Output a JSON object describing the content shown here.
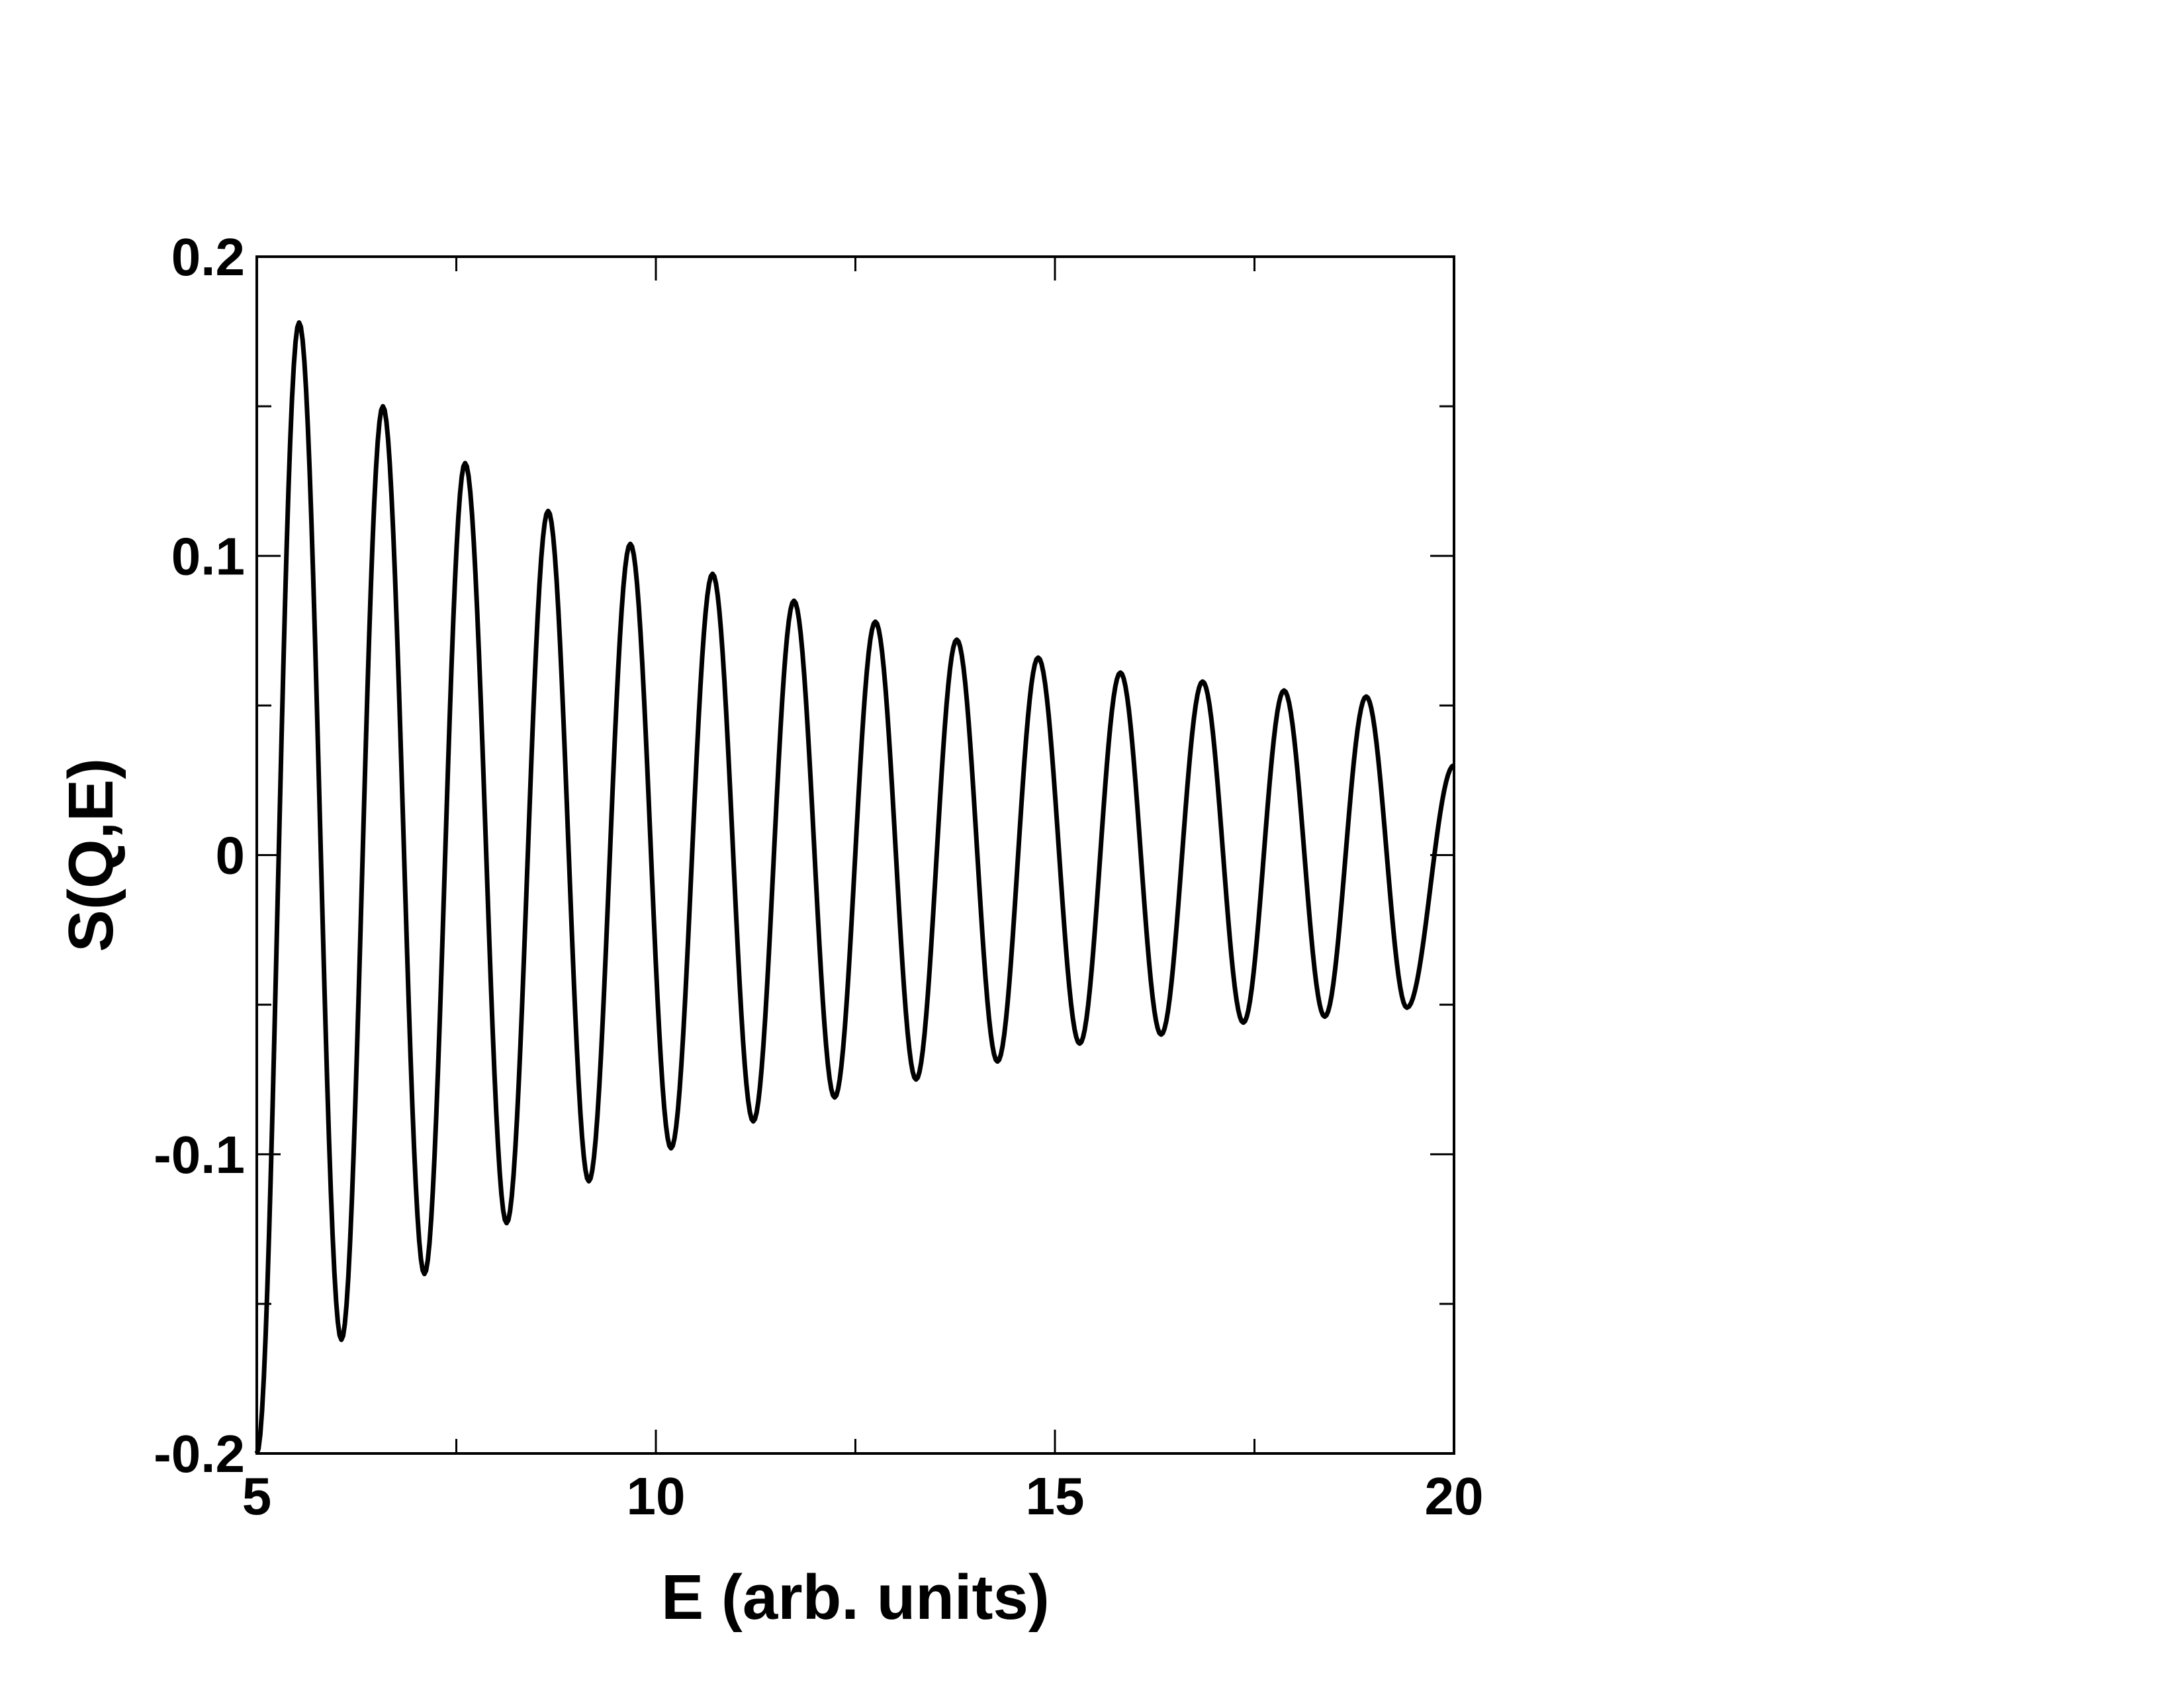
{
  "chart_data": {
    "type": "line",
    "title": "",
    "xlabel": "E (arb. units)",
    "ylabel": "S(Q,E)",
    "xlim": [
      5,
      20
    ],
    "ylim": [
      -0.2,
      0.2
    ],
    "grid": false,
    "x_ticks": {
      "major": [
        5,
        10,
        15,
        20
      ],
      "major_labels": [
        "5",
        "10",
        "15",
        "20"
      ],
      "minor": [
        7.5,
        12.5,
        17.5
      ]
    },
    "y_ticks": {
      "major": [
        -0.2,
        -0.1,
        0,
        0.1,
        0.2
      ],
      "major_labels": [
        "-0.2",
        "-0.1",
        "0",
        "0.1",
        "0.2"
      ],
      "minor": [
        -0.15,
        -0.05,
        0.05,
        0.15
      ]
    },
    "line_color": "#000000",
    "series": [
      {
        "points": [
          [
            5.0,
            -0.2
          ],
          [
            5.53,
            0.178
          ],
          [
            6.06,
            -0.162
          ],
          [
            6.58,
            0.15
          ],
          [
            7.1,
            -0.14
          ],
          [
            7.61,
            0.131
          ],
          [
            8.13,
            -0.123
          ],
          [
            8.65,
            0.115
          ],
          [
            9.16,
            -0.109
          ],
          [
            9.68,
            0.104
          ],
          [
            10.19,
            -0.098
          ],
          [
            10.71,
            0.094
          ],
          [
            11.22,
            -0.089
          ],
          [
            11.73,
            0.085
          ],
          [
            12.24,
            -0.081
          ],
          [
            12.75,
            0.078
          ],
          [
            13.26,
            -0.075
          ],
          [
            13.77,
            0.072
          ],
          [
            14.28,
            -0.069
          ],
          [
            14.79,
            0.066
          ],
          [
            15.31,
            -0.063
          ],
          [
            15.82,
            0.061
          ],
          [
            16.33,
            -0.06
          ],
          [
            16.85,
            0.058
          ],
          [
            17.36,
            -0.056
          ],
          [
            17.87,
            0.055
          ],
          [
            18.38,
            -0.054
          ],
          [
            18.9,
            0.053
          ],
          [
            19.41,
            -0.051
          ],
          [
            20.0,
            0.03
          ]
        ]
      }
    ]
  }
}
